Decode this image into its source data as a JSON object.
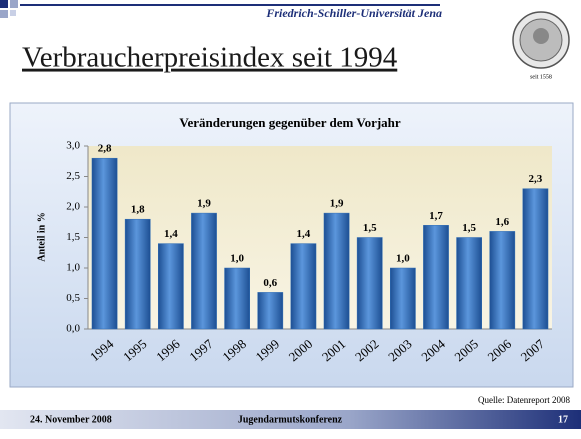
{
  "slide": {
    "university": "Friedrich-Schiller-Universität Jena",
    "heading": "Verbraucherpreisindex seit 1994",
    "seal_text": "seit 1558",
    "source": "Quelle: Datenreport 2008",
    "date": "24. November 2008",
    "event": "Jugendarmutskonferenz",
    "page": "17"
  },
  "chart_data": {
    "type": "bar",
    "title": "Veränderungen gegenüber dem Vorjahr",
    "y_label": "Anteil in %",
    "categories": [
      "1994",
      "1995",
      "1996",
      "1997",
      "1998",
      "1999",
      "2000",
      "2001",
      "2002",
      "2003",
      "2004",
      "2005",
      "2006",
      "2007"
    ],
    "values": [
      2.8,
      1.8,
      1.4,
      1.9,
      1.0,
      0.6,
      1.4,
      1.9,
      1.5,
      1.0,
      1.7,
      1.5,
      1.6,
      2.3
    ],
    "value_labels": [
      "2,8",
      "1,8",
      "1,4",
      "1,9",
      "1,0",
      "0,6",
      "1,4",
      "1,9",
      "1,5",
      "1,0",
      "1,7",
      "1,5",
      "1,6",
      "2,3"
    ],
    "color": "#2f6db5",
    "ylim": [
      0,
      3
    ],
    "yticks": [
      {
        "value": 0,
        "label": "0,0"
      },
      {
        "value": 0.5,
        "label": "0,5"
      },
      {
        "value": 1,
        "label": "1,0"
      },
      {
        "value": 1.5,
        "label": "1,5"
      },
      {
        "value": 2,
        "label": "2,0"
      },
      {
        "value": 2.5,
        "label": "2,5"
      },
      {
        "value": 3,
        "label": "3,0"
      }
    ]
  }
}
